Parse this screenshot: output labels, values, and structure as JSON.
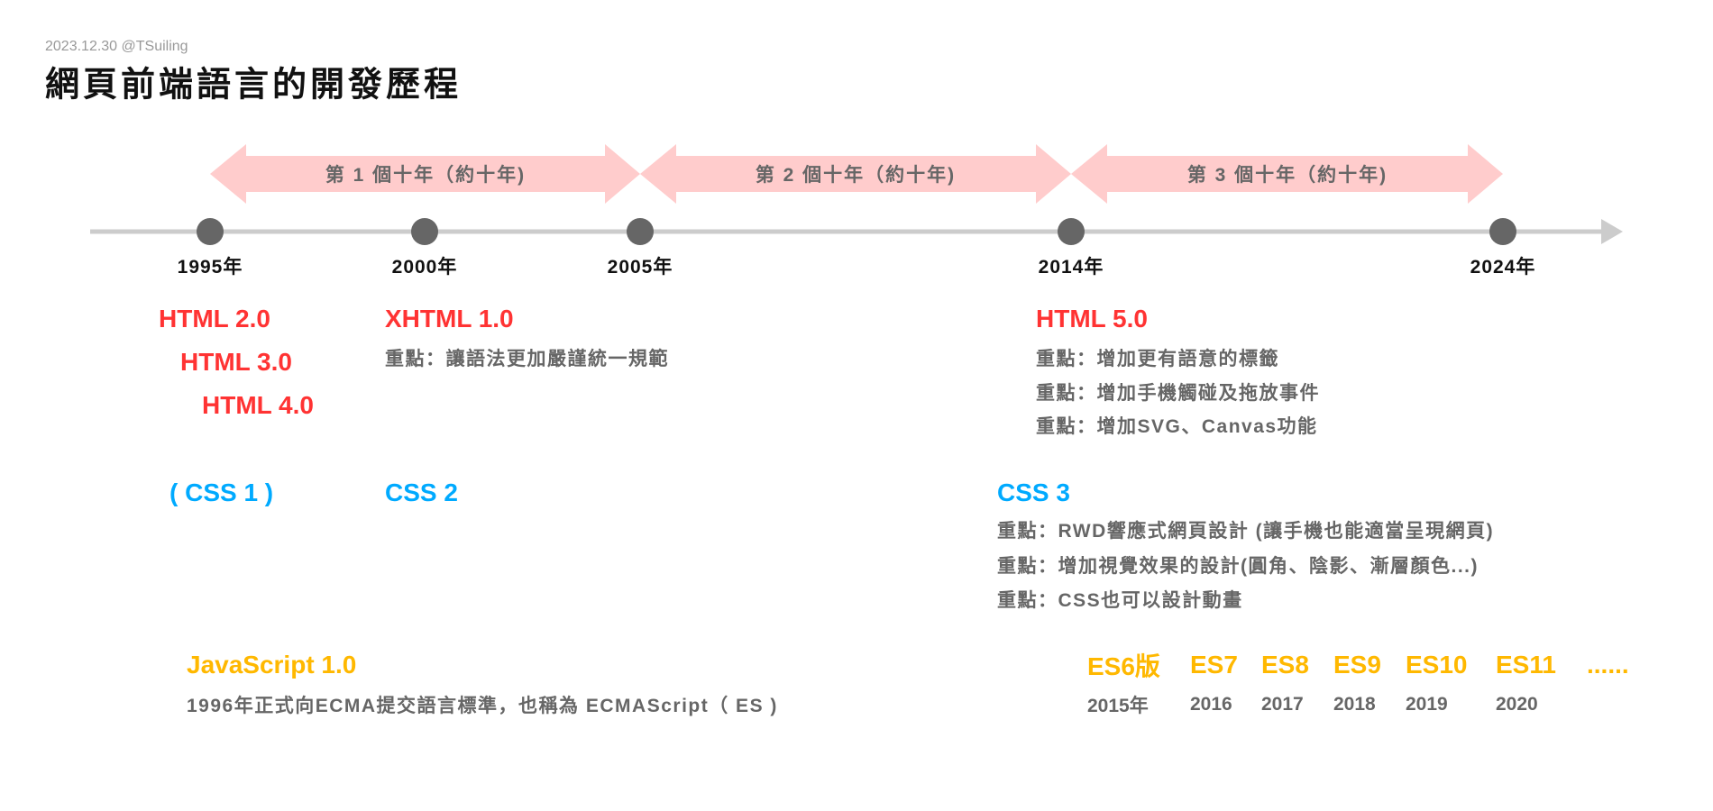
{
  "header": {
    "date": "2023.12.30  @TSuiling",
    "title": "網頁前端語言的開發歷程"
  },
  "colors": {
    "html": "#ff3333",
    "css": "#00aaff",
    "javascript": "#ffb800",
    "note": "#666666",
    "band": "#ffcccc",
    "timeline": "#cccccc",
    "marker": "#666666"
  },
  "bands": [
    {
      "label": "第 1 個十年（約十年)"
    },
    {
      "label": "第 2 個十年（約十年)"
    },
    {
      "label": "第 3 個十年（約十年)"
    }
  ],
  "years": [
    "1995年",
    "2000年",
    "2005年",
    "2014年",
    "2024年"
  ],
  "html": {
    "v1995": [
      "HTML 2.0",
      "HTML 3.0",
      "HTML 4.0"
    ],
    "xhtml": {
      "title": "XHTML 1.0",
      "note": "重點：讓語法更加嚴謹統一規範"
    },
    "html5": {
      "title": "HTML 5.0",
      "notes": [
        "重點：增加更有語意的標籤",
        "重點：增加手機觸碰及拖放事件",
        "重點：增加SVG、Canvas功能"
      ]
    }
  },
  "css": {
    "css1": "( CSS 1 )",
    "css2": "CSS 2",
    "css3": {
      "title": "CSS 3",
      "notes": [
        "重點：RWD響應式網頁設計 (讓手機也能適當呈現網頁)",
        "重點：增加視覺效果的設計(圓角、陰影、漸層顏色...)",
        "重點：CSS也可以設計動畫"
      ]
    }
  },
  "javascript": {
    "title": "JavaScript 1.0",
    "note": "1996年正式向ECMA提交語言標準，也稱為 ECMAScript（ ES )"
  },
  "es_versions": [
    {
      "name": "ES6版",
      "year": "2015年"
    },
    {
      "name": "ES7",
      "year": "2016"
    },
    {
      "name": "ES8",
      "year": "2017"
    },
    {
      "name": "ES9",
      "year": "2018"
    },
    {
      "name": "ES10",
      "year": "2019"
    },
    {
      "name": "ES11",
      "year": "2020"
    },
    {
      "name": "......",
      "year": ""
    }
  ]
}
